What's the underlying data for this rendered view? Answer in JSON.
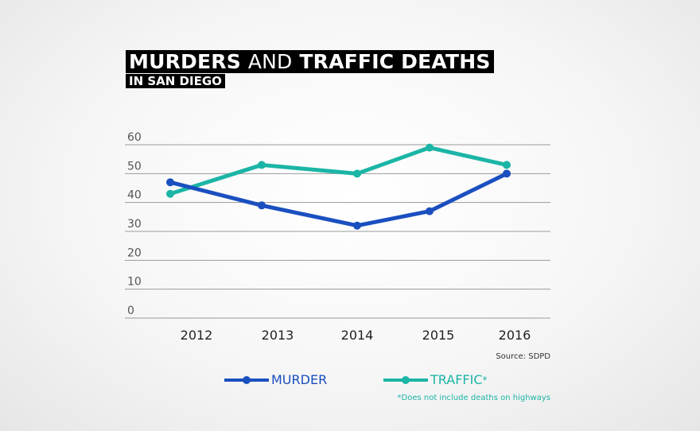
{
  "title": {
    "part1": "MURDERS",
    "part2": "AND",
    "part3": "TRAFFIC DEATHS",
    "subtitle": "IN SAN DIEGO"
  },
  "source": "Source: SDPD",
  "footnote": "*Does not include deaths on highways",
  "colors": {
    "murder": "#1a4fc0",
    "traffic": "#1bb5a6"
  },
  "chart_data": {
    "type": "line",
    "title": "MURDERS AND TRAFFIC DEATHS IN SAN DIEGO",
    "categories": [
      "2012",
      "2013",
      "2014",
      "2015",
      "2016"
    ],
    "yticks": [
      "0",
      "10",
      "20",
      "30",
      "40",
      "50",
      "60"
    ],
    "ylim": [
      0,
      60
    ],
    "grid": true,
    "legend": "bottom",
    "series": [
      {
        "name": "MURDER",
        "color": "#1a4fc0",
        "values": [
          47,
          39,
          32,
          37,
          50
        ]
      },
      {
        "name": "TRAFFIC",
        "suffix": "*",
        "color": "#1bb5a6",
        "values": [
          43,
          53,
          50,
          59,
          53
        ]
      }
    ]
  }
}
